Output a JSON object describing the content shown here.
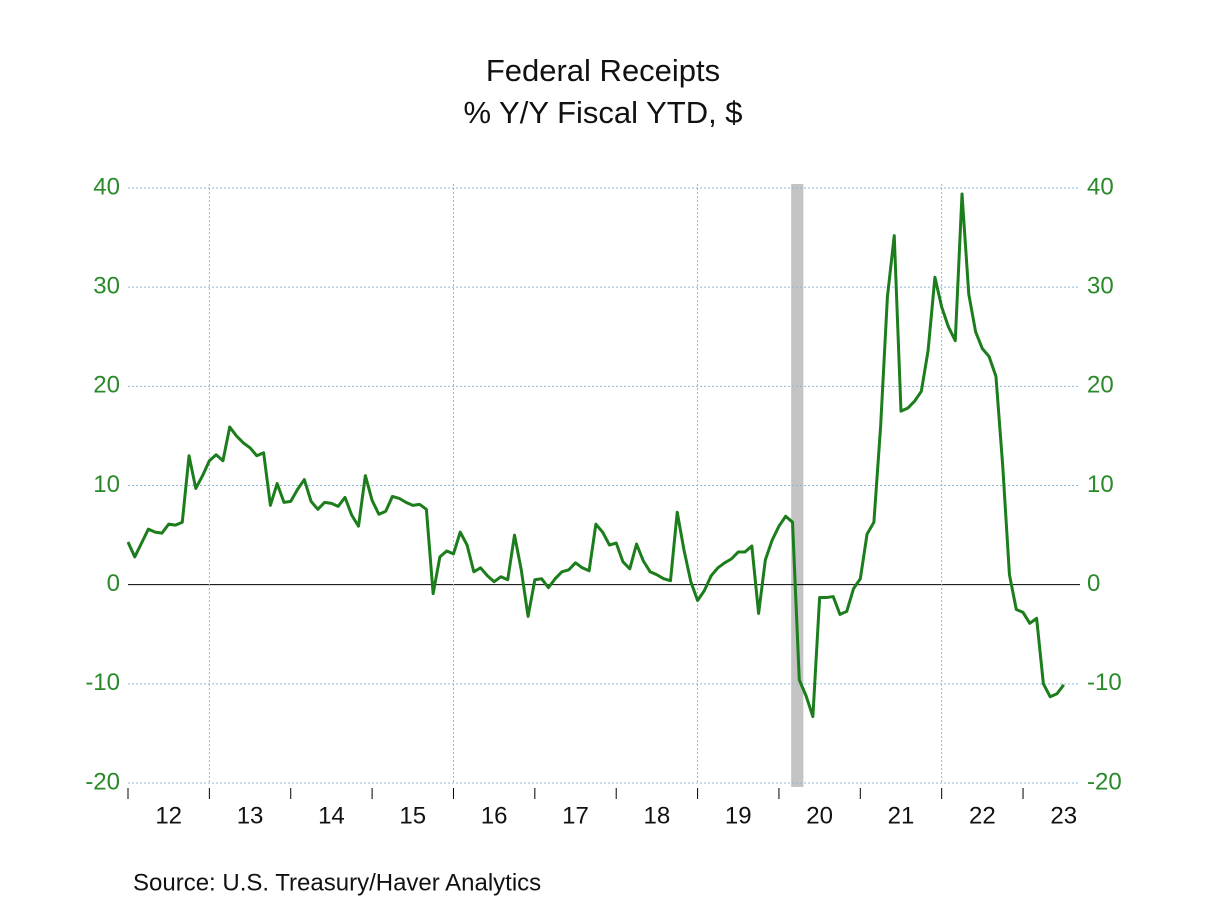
{
  "chart_data": {
    "type": "line",
    "title": "Federal Receipts",
    "subtitle": "% Y/Y   Fiscal YTD, $",
    "source": "Source:  U.S. Treasury/Haver Analytics",
    "xlim": [
      2012,
      2023.7
    ],
    "xticks": [
      {
        "value": 2012,
        "label": "12"
      },
      {
        "value": 2013,
        "label": "13"
      },
      {
        "value": 2014,
        "label": "14"
      },
      {
        "value": 2015,
        "label": "15"
      },
      {
        "value": 2016,
        "label": "16"
      },
      {
        "value": 2017,
        "label": "17"
      },
      {
        "value": 2018,
        "label": "18"
      },
      {
        "value": 2019,
        "label": "19"
      },
      {
        "value": 2020,
        "label": "20"
      },
      {
        "value": 2021,
        "label": "21"
      },
      {
        "value": 2022,
        "label": "22"
      },
      {
        "value": 2023,
        "label": "23"
      }
    ],
    "xgrid": [
      2013,
      2016,
      2019,
      2022
    ],
    "ylim": [
      -20,
      40
    ],
    "yticks": [
      -20,
      -10,
      0,
      10,
      20,
      30,
      40
    ],
    "y2lim": [
      -20,
      40
    ],
    "y2ticks": [
      -20,
      -10,
      0,
      10,
      20,
      30,
      40
    ],
    "grid": true,
    "shading": [
      2020.15,
      2020.3
    ],
    "x": [
      2012,
      2012.083,
      2012.167,
      2012.25,
      2012.333,
      2012.417,
      2012.5,
      2012.583,
      2012.667,
      2012.75,
      2012.833,
      2012.917,
      2013,
      2013.083,
      2013.167,
      2013.25,
      2013.333,
      2013.417,
      2013.5,
      2013.583,
      2013.667,
      2013.75,
      2013.833,
      2013.917,
      2014,
      2014.083,
      2014.167,
      2014.25,
      2014.333,
      2014.417,
      2014.5,
      2014.583,
      2014.667,
      2014.75,
      2014.833,
      2014.917,
      2015,
      2015.083,
      2015.167,
      2015.25,
      2015.333,
      2015.417,
      2015.5,
      2015.583,
      2015.667,
      2015.75,
      2015.833,
      2015.917,
      2016,
      2016.083,
      2016.167,
      2016.25,
      2016.333,
      2016.417,
      2016.5,
      2016.583,
      2016.667,
      2016.75,
      2016.833,
      2016.917,
      2017,
      2017.083,
      2017.167,
      2017.25,
      2017.333,
      2017.417,
      2017.5,
      2017.583,
      2017.667,
      2017.75,
      2017.833,
      2017.917,
      2018,
      2018.083,
      2018.167,
      2018.25,
      2018.333,
      2018.417,
      2018.5,
      2018.583,
      2018.667,
      2018.75,
      2018.833,
      2018.917,
      2019,
      2019.083,
      2019.167,
      2019.25,
      2019.333,
      2019.417,
      2019.5,
      2019.583,
      2019.667,
      2019.75,
      2019.833,
      2019.917,
      2020,
      2020.083,
      2020.167,
      2020.25,
      2020.333,
      2020.417,
      2020.5,
      2020.583,
      2020.667,
      2020.75,
      2020.833,
      2020.917,
      2021,
      2021.083,
      2021.167,
      2021.25,
      2021.333,
      2021.417,
      2021.5,
      2021.583,
      2021.667,
      2021.75,
      2021.833,
      2021.917,
      2022,
      2022.083,
      2022.167,
      2022.25,
      2022.333,
      2022.417,
      2022.5,
      2022.583,
      2022.667,
      2022.75,
      2022.833,
      2022.917,
      2023,
      2023.083,
      2023.167,
      2023.25,
      2023.333,
      2023.417,
      2023.5
    ],
    "series": [
      {
        "color": "#1c7d1c",
        "values": [
          4.3,
          2.8,
          4.2,
          5.6,
          5.3,
          5.2,
          6.1,
          6.0,
          6.3,
          13.0,
          9.7,
          11.0,
          12.5,
          13.1,
          12.5,
          15.9,
          15.0,
          14.3,
          13.8,
          13.0,
          13.3,
          8.0,
          10.2,
          8.3,
          8.4,
          9.6,
          10.6,
          8.4,
          7.6,
          8.3,
          8.2,
          7.9,
          8.8,
          7.0,
          5.9,
          11.0,
          8.5,
          7.1,
          7.4,
          8.9,
          8.7,
          8.3,
          8.0,
          8.1,
          7.6,
          -0.9,
          2.8,
          3.4,
          3.1,
          5.3,
          4.0,
          1.3,
          1.7,
          0.9,
          0.3,
          0.8,
          0.5,
          5.0,
          1.5,
          -3.2,
          0.5,
          0.6,
          -0.3,
          0.6,
          1.3,
          1.5,
          2.2,
          1.7,
          1.4,
          6.1,
          5.3,
          4.0,
          4.2,
          2.3,
          1.6,
          4.1,
          2.4,
          1.3,
          1.0,
          0.6,
          0.4,
          7.3,
          3.5,
          0.3,
          -1.6,
          -0.6,
          0.9,
          1.7,
          2.2,
          2.6,
          3.3,
          3.3,
          3.9,
          -2.9,
          2.5,
          4.5,
          5.9,
          6.9,
          6.3,
          -9.6,
          -11.2,
          -13.3,
          -1.3,
          -1.3,
          -1.2,
          -3.0,
          -2.7,
          -0.4,
          0.6,
          5.1,
          6.3,
          16.0,
          29.0,
          35.2,
          17.5,
          17.8,
          18.5,
          19.5,
          23.6,
          31.0,
          28.0,
          26.0,
          24.6,
          39.4,
          29.3,
          25.5,
          23.8,
          23.0,
          21.0,
          12.0,
          1.0,
          -2.5,
          -2.8,
          -3.9,
          -3.4,
          -10.0,
          -11.3,
          -11.0,
          -10.1
        ]
      }
    ]
  }
}
